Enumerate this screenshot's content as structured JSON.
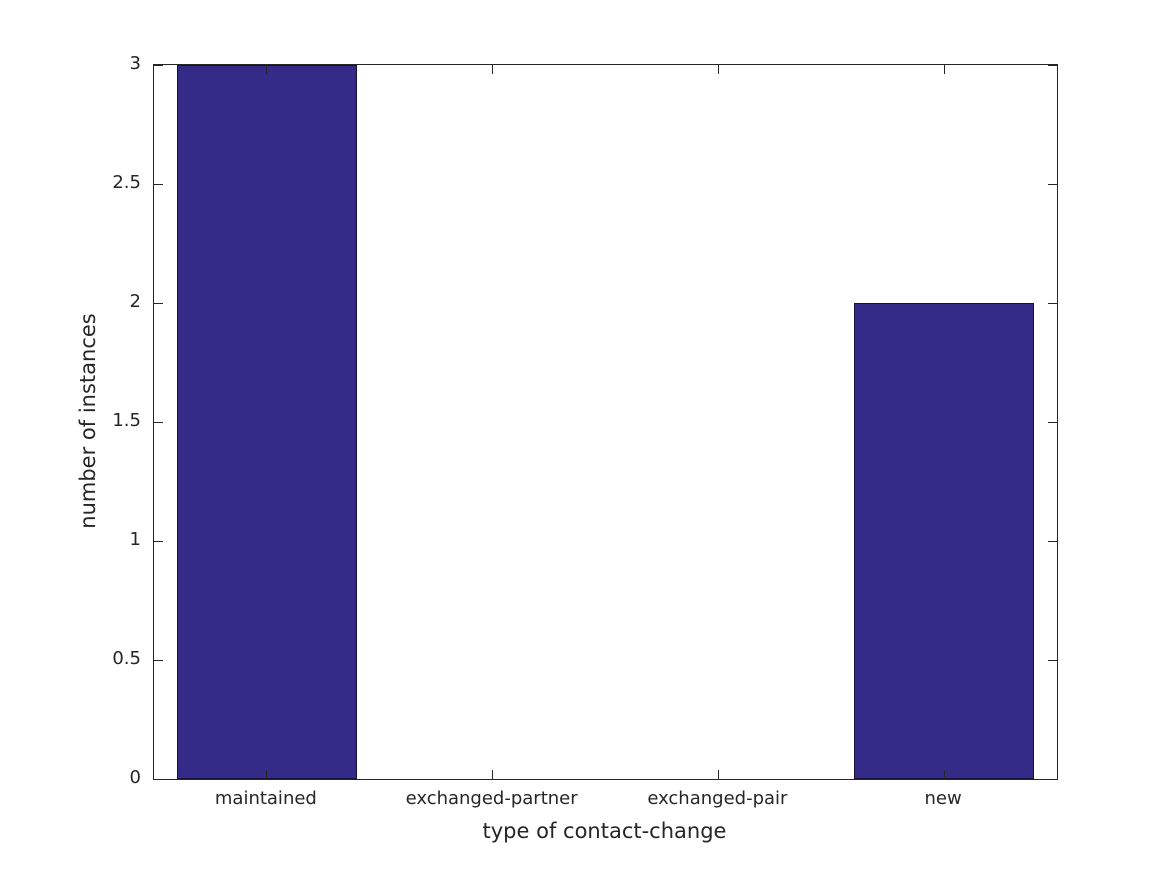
{
  "chart_data": {
    "type": "bar",
    "title": "",
    "categories": [
      "maintained",
      "exchanged-partner",
      "exchanged-pair",
      "new"
    ],
    "values": [
      3,
      0,
      0,
      2
    ],
    "xlabel": "type of contact-change",
    "ylabel": "number of instances",
    "ylim": [
      0,
      3
    ],
    "ytick_labels": [
      "0",
      "0.5",
      "1",
      "1.5",
      "2",
      "2.5",
      "3"
    ],
    "bar_width_fraction": 0.8,
    "grid": false,
    "legend": "none",
    "colors": {
      "bar_fill": "#342a88",
      "bar_edge": "#14123b",
      "axis": "#262626",
      "text": "#262626",
      "background": "#ffffff"
    }
  }
}
